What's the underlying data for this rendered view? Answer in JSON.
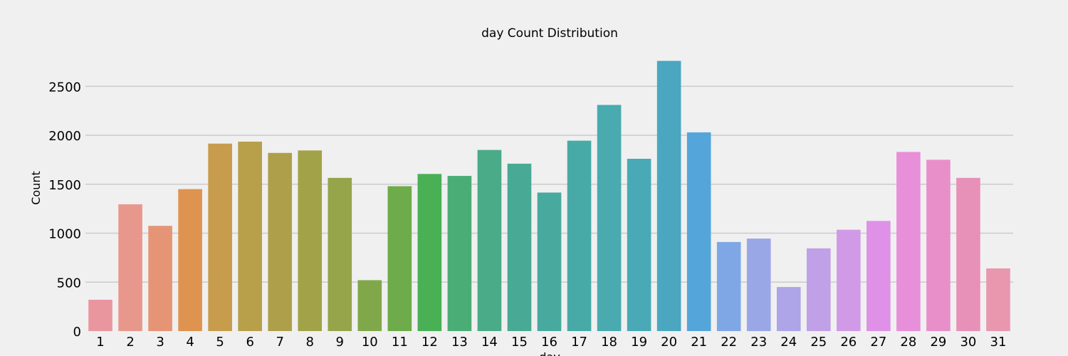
{
  "chart_data": {
    "type": "bar",
    "title": "day Count Distribution",
    "xlabel": "day",
    "ylabel": "Count",
    "categories": [
      "1",
      "2",
      "3",
      "4",
      "5",
      "6",
      "7",
      "8",
      "9",
      "10",
      "11",
      "12",
      "13",
      "14",
      "15",
      "16",
      "17",
      "18",
      "19",
      "20",
      "21",
      "22",
      "23",
      "24",
      "25",
      "26",
      "27",
      "28",
      "29",
      "30",
      "31"
    ],
    "values": [
      320,
      1295,
      1075,
      1450,
      1915,
      1935,
      1820,
      1845,
      1565,
      520,
      1480,
      1605,
      1585,
      1850,
      1710,
      1415,
      1945,
      2310,
      1760,
      2760,
      2030,
      910,
      945,
      450,
      845,
      1035,
      1125,
      1830,
      1750,
      1565,
      640
    ],
    "ylim": [
      0,
      2800
    ],
    "yticks": [
      0,
      500,
      1000,
      1500,
      2000,
      2500
    ],
    "grid": true,
    "colors": [
      "#e9969f",
      "#e8978c",
      "#e59575",
      "#de9450",
      "#c89c4d",
      "#b89f4a",
      "#aea04a",
      "#a2a249",
      "#96a44a",
      "#80a84a",
      "#6eab4a",
      "#4ab055",
      "#4aad75",
      "#49ab87",
      "#48aa94",
      "#48aa9f",
      "#48aaa7",
      "#49aab0",
      "#4aa9b6",
      "#4ba6c0",
      "#54a5d9",
      "#7fa7e6",
      "#9aa7e7",
      "#ada5e7",
      "#c0a0e7",
      "#d19ae6",
      "#de91e6",
      "#e78fd8",
      "#e88fc9",
      "#e891b8",
      "#e897af"
    ]
  }
}
